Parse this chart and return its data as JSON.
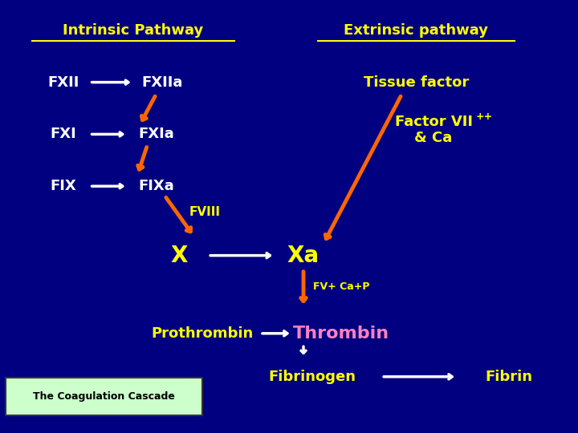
{
  "bg_color": "#000080",
  "title_intrinsic": "Intrinsic Pathway",
  "title_extrinsic": "Extrinsic pathway",
  "label_fxii": "FXII",
  "label_fxiia": "FXIIa",
  "label_fxi": "FXI",
  "label_fxia": "FXIa",
  "label_fix": "FIX",
  "label_fixa": "FIXa",
  "label_fviii": "FVIII",
  "label_x": "X",
  "label_xa": "Xa",
  "label_tissue": "Tissue factor",
  "label_factor7": "Factor VII\n& Ca",
  "label_factor7_sup": "++",
  "label_fv": "FV+ Ca+P",
  "label_prothrombin": "Prothrombin",
  "label_thrombin": "Thrombin",
  "label_fibrinogen": "Fibrinogen",
  "label_fibrin": "Fibrin",
  "label_cascade": "The Coagulation Cascade",
  "yellow": "#FFFF00",
  "orange": "#FF6600",
  "white": "#FFFFFF",
  "pink": "#FF80C0",
  "light_green_bg": "#CCFFCC"
}
